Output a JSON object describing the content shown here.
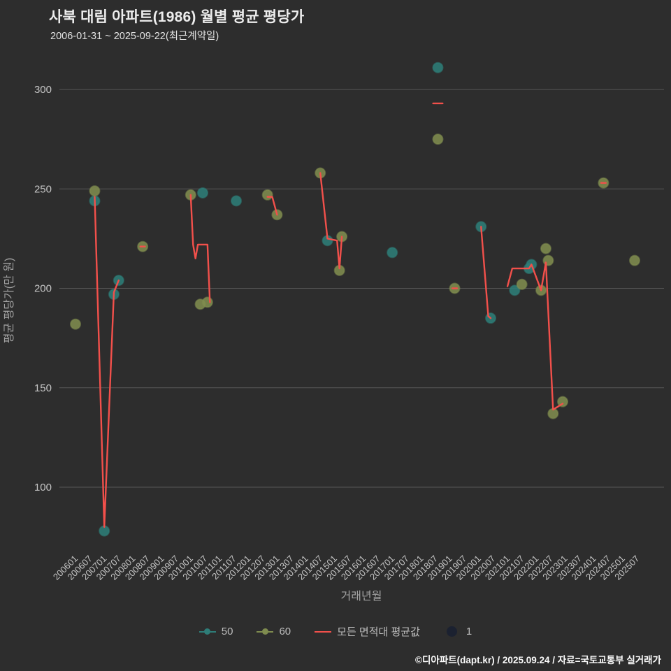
{
  "page": {
    "title": "사북 대림 아파트(1986) 월별 평균 평당가",
    "subtitle": "2006-01-31 ~ 2025-09-22(최근계약일)",
    "footer": "©디아파트(dapt.kr) / 2025.09.24 / 자료=국토교통부 실거래가"
  },
  "colors": {
    "background": "#2d2d2d",
    "grid": "#565656",
    "tick_text": "#c4c4c4",
    "axis_title_text": "#a3a3a3",
    "teal": "#2e7d78",
    "olive": "#7f8c4f",
    "red": "#f2504b",
    "dark_dot": "#1b2130"
  },
  "chart_data": {
    "type": "scatter",
    "title": "사북 대림 아파트(1986) 월별 평균 평당가",
    "subtitle": "2006-01-31 ~ 2025-09-22(최근계약일)",
    "xlabel": "거래년월",
    "ylabel": "평균 평당가(만 원)",
    "ylim": [
      70,
      320
    ],
    "y_ticks": [
      100,
      150,
      200,
      250,
      300
    ],
    "x_ticks": [
      "200601",
      "200607",
      "200701",
      "200707",
      "200801",
      "200807",
      "200901",
      "200907",
      "201001",
      "201007",
      "201101",
      "201107",
      "201201",
      "201207",
      "201301",
      "201307",
      "201401",
      "201407",
      "201501",
      "201507",
      "201601",
      "201607",
      "201701",
      "201707",
      "201801",
      "201807",
      "201901",
      "201907",
      "202001",
      "202007",
      "202101",
      "202107",
      "202201",
      "202207",
      "202301",
      "202307",
      "202401",
      "202407",
      "202501",
      "202507"
    ],
    "grid": "horizontal",
    "legend_position": "bottom",
    "series": [
      {
        "name": "50",
        "type": "scatter",
        "color": "#2e7d78",
        "points": [
          [
            "200609",
            244
          ],
          [
            "200701",
            78
          ],
          [
            "200705",
            197
          ],
          [
            "200707",
            204
          ],
          [
            "201006",
            248
          ],
          [
            "201108",
            244
          ],
          [
            "201410",
            224
          ],
          [
            "201701",
            218
          ],
          [
            "201808",
            311
          ],
          [
            "202002",
            231
          ],
          [
            "202006",
            185
          ],
          [
            "202104",
            199
          ],
          [
            "202110",
            210
          ],
          [
            "202111",
            212
          ]
        ]
      },
      {
        "name": "60",
        "type": "scatter",
        "color": "#7f8c4f",
        "points": [
          [
            "200601",
            182
          ],
          [
            "200609",
            249
          ],
          [
            "200805",
            221
          ],
          [
            "201001",
            247
          ],
          [
            "201005",
            192
          ],
          [
            "201008",
            193
          ],
          [
            "201209",
            247
          ],
          [
            "201301",
            237
          ],
          [
            "201407",
            258
          ],
          [
            "201503",
            209
          ],
          [
            "201504",
            226
          ],
          [
            "201808",
            275
          ],
          [
            "201903",
            200
          ],
          [
            "202107",
            202
          ],
          [
            "202203",
            199
          ],
          [
            "202205",
            220
          ],
          [
            "202206",
            214
          ],
          [
            "202208",
            137
          ],
          [
            "202212",
            143
          ],
          [
            "202405",
            253
          ],
          [
            "202506",
            214
          ]
        ]
      },
      {
        "name": "모든 면적대 평균값",
        "type": "line",
        "color": "#f2504b",
        "segments": [
          [
            [
              "200609",
              246
            ],
            [
              "200701",
              80
            ],
            [
              "200705",
              198
            ],
            [
              "200707",
              204
            ]
          ],
          [
            [
              "200804",
              221
            ],
            [
              "200806",
              221
            ]
          ],
          [
            [
              "201001",
              247
            ],
            [
              "201002",
              222
            ],
            [
              "201003",
              215
            ],
            [
              "201004",
              222
            ],
            [
              "201008",
              222
            ],
            [
              "201009",
              193
            ]
          ],
          [
            [
              "201209",
              246
            ],
            [
              "201211",
              246
            ],
            [
              "201301",
              237
            ]
          ],
          [
            [
              "201407",
              258
            ],
            [
              "201410",
              225
            ],
            [
              "201502",
              224
            ],
            [
              "201503",
              210
            ],
            [
              "201504",
              226
            ]
          ],
          [
            [
              "201806",
              293
            ],
            [
              "201810",
              293
            ]
          ],
          [
            [
              "201902",
              200
            ],
            [
              "201904",
              200
            ]
          ],
          [
            [
              "202002",
              231
            ],
            [
              "202005",
              186
            ],
            [
              "202006",
              185
            ]
          ],
          [
            [
              "202101",
              201
            ],
            [
              "202103",
              210
            ],
            [
              "202110",
              210
            ],
            [
              "202111",
              212
            ],
            [
              "202203",
              199
            ],
            [
              "202205",
              213
            ],
            [
              "202208",
              139
            ],
            [
              "202212",
              142
            ]
          ],
          [
            [
              "202404",
              253
            ],
            [
              "202406",
              253
            ]
          ]
        ]
      },
      {
        "name": "1",
        "type": "scatter",
        "color": "#1b2130",
        "points": []
      }
    ],
    "legend": [
      {
        "label": "50",
        "color": "#2e7d78",
        "marker": "dot"
      },
      {
        "label": "60",
        "color": "#7f8c4f",
        "marker": "dot"
      },
      {
        "label": "모든 면적대 평균값",
        "color": "#f2504b",
        "marker": "line"
      },
      {
        "label": "1",
        "color": "#1b2130",
        "marker": "bubble"
      }
    ]
  }
}
